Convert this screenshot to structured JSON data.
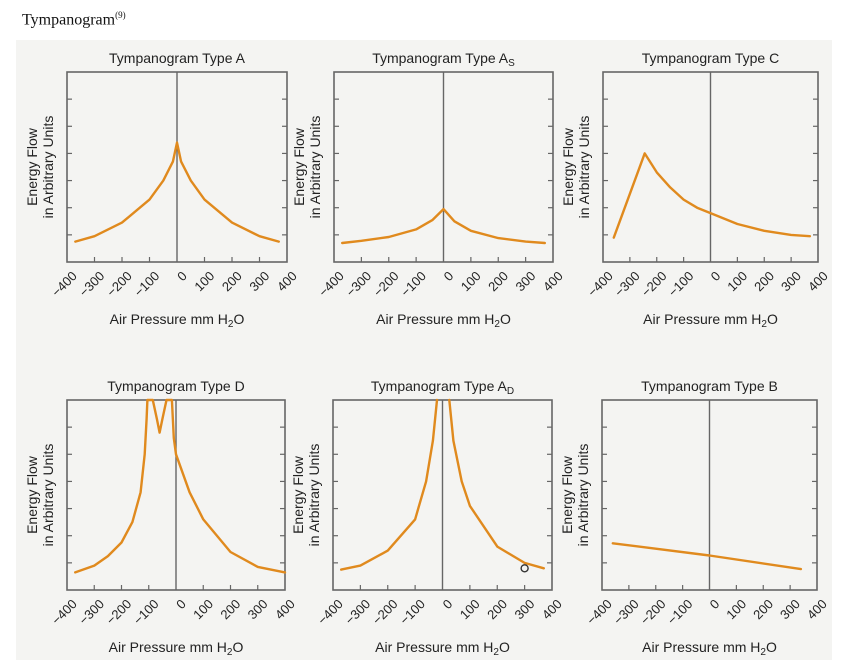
{
  "figure": {
    "title": "Tympanogram",
    "reference": "(9)"
  },
  "colors": {
    "curve": "#e08a1e",
    "axis": "#666666",
    "text": "#222222"
  },
  "chart_data": [
    {
      "type": "line",
      "title": "Tympanogram Type A",
      "title_sub": "",
      "xlabel": "Air Pressure mm H",
      "xlabel_sub": "2",
      "xlabel_end": "O",
      "ylabel": [
        "Energy Flow",
        "in Arbitrary Units"
      ],
      "xlim": [
        -400,
        400
      ],
      "ylim": [
        0,
        7
      ],
      "xticks": [
        -400,
        -300,
        -200,
        -100,
        0,
        100,
        200,
        300,
        400
      ],
      "yticks": [
        1,
        2,
        3,
        4,
        5,
        6
      ],
      "series": [
        {
          "name": "Type A",
          "points": [
            [
              -370,
              0.75
            ],
            [
              -300,
              0.95
            ],
            [
              -200,
              1.45
            ],
            [
              -100,
              2.3
            ],
            [
              -50,
              3.0
            ],
            [
              -15,
              3.7
            ],
            [
              0,
              4.4
            ],
            [
              15,
              3.7
            ],
            [
              50,
              3.0
            ],
            [
              100,
              2.3
            ],
            [
              200,
              1.45
            ],
            [
              300,
              0.95
            ],
            [
              370,
              0.75
            ]
          ]
        }
      ]
    },
    {
      "type": "line",
      "title": "Tympanogram Type A",
      "title_sub": "S",
      "xlabel": "Air Pressure mm H",
      "xlabel_sub": "2",
      "xlabel_end": "O",
      "ylabel": [
        "Energy Flow",
        "in Arbitrary Units"
      ],
      "xlim": [
        -400,
        400
      ],
      "ylim": [
        0,
        7
      ],
      "xticks": [
        -400,
        -300,
        -200,
        -100,
        0,
        100,
        200,
        300,
        400
      ],
      "yticks": [
        1,
        2,
        3,
        4,
        5,
        6
      ],
      "series": [
        {
          "name": "Type As",
          "points": [
            [
              -370,
              0.7
            ],
            [
              -300,
              0.78
            ],
            [
              -200,
              0.92
            ],
            [
              -100,
              1.2
            ],
            [
              -40,
              1.55
            ],
            [
              0,
              1.95
            ],
            [
              40,
              1.5
            ],
            [
              100,
              1.15
            ],
            [
              200,
              0.88
            ],
            [
              300,
              0.75
            ],
            [
              370,
              0.7
            ]
          ]
        }
      ]
    },
    {
      "type": "line",
      "title": "Tympanogram Type C",
      "title_sub": "",
      "xlabel": "Air Pressure mm H",
      "xlabel_sub": "2",
      "xlabel_end": "O",
      "ylabel": [
        "Energy Flow",
        "in Arbitrary Units"
      ],
      "xlim": [
        -400,
        400
      ],
      "ylim": [
        0,
        7
      ],
      "xticks": [
        -400,
        -300,
        -200,
        -100,
        0,
        100,
        200,
        300,
        400
      ],
      "yticks": [
        1,
        2,
        3,
        4,
        5,
        6
      ],
      "series": [
        {
          "name": "Type C",
          "points": [
            [
              -360,
              0.9
            ],
            [
              -245,
              4.0
            ],
            [
              -200,
              3.3
            ],
            [
              -150,
              2.75
            ],
            [
              -100,
              2.3
            ],
            [
              -50,
              2.0
            ],
            [
              0,
              1.8
            ],
            [
              100,
              1.4
            ],
            [
              200,
              1.15
            ],
            [
              300,
              1.0
            ],
            [
              370,
              0.95
            ]
          ]
        }
      ]
    },
    {
      "type": "line",
      "title": "Tympanogram Type D",
      "title_sub": "",
      "xlabel": "Air Pressure mm H",
      "xlabel_sub": "2",
      "xlabel_end": "O",
      "ylabel": [
        "Energy Flow",
        "in Arbitrary Units"
      ],
      "xlim": [
        -400,
        400
      ],
      "ylim": [
        0,
        7
      ],
      "xticks": [
        -400,
        -300,
        -200,
        -100,
        0,
        100,
        200,
        300,
        400
      ],
      "yticks": [
        1,
        2,
        3,
        4,
        5,
        6
      ],
      "series": [
        {
          "name": "Type D",
          "points": [
            [
              -370,
              0.65
            ],
            [
              -300,
              0.9
            ],
            [
              -250,
              1.25
            ],
            [
              -200,
              1.75
            ],
            [
              -160,
              2.5
            ],
            [
              -130,
              3.6
            ],
            [
              -115,
              5.0
            ],
            [
              -108,
              6.3
            ],
            [
              -105,
              7
            ],
            [
              -85,
              7
            ],
            [
              -70,
              6.3
            ],
            [
              -60,
              5.8
            ],
            [
              -50,
              6.3
            ],
            [
              -35,
              7
            ],
            [
              -15,
              7
            ],
            [
              -8,
              5.6
            ],
            [
              0,
              5.0
            ],
            [
              50,
              3.6
            ],
            [
              100,
              2.6
            ],
            [
              200,
              1.4
            ],
            [
              300,
              0.85
            ],
            [
              400,
              0.65
            ]
          ]
        }
      ]
    },
    {
      "type": "line",
      "title": "Tympanogram Type A",
      "title_sub": "D",
      "xlabel": "Air Pressure mm H",
      "xlabel_sub": "2",
      "xlabel_end": "O",
      "ylabel": [
        "Energy Flow",
        "in Arbitrary Units"
      ],
      "xlim": [
        -400,
        400
      ],
      "ylim": [
        0,
        7
      ],
      "xticks": [
        -400,
        -300,
        -200,
        -100,
        0,
        100,
        200,
        300,
        400
      ],
      "yticks": [
        1,
        2,
        3,
        4,
        5,
        6
      ],
      "series": [
        {
          "name": "Type Ad left",
          "points": [
            [
              -370,
              0.75
            ],
            [
              -300,
              0.9
            ],
            [
              -200,
              1.45
            ],
            [
              -100,
              2.6
            ],
            [
              -60,
              4.0
            ],
            [
              -35,
              5.5
            ],
            [
              -20,
              7
            ]
          ]
        },
        {
          "name": "Type Ad right",
          "points": [
            [
              25,
              7
            ],
            [
              40,
              5.5
            ],
            [
              70,
              4.0
            ],
            [
              100,
              3.1
            ],
            [
              200,
              1.6
            ],
            [
              300,
              1.0
            ],
            [
              370,
              0.8
            ]
          ]
        }
      ],
      "marker": {
        "x": 300,
        "y": 0.8
      }
    },
    {
      "type": "line",
      "title": "Tympanogram Type B",
      "title_sub": "",
      "xlabel": "Air Pressure mm H",
      "xlabel_sub": "2",
      "xlabel_end": "O",
      "ylabel": [
        "Energy Flow",
        "in Arbitrary Units"
      ],
      "xlim": [
        -400,
        400
      ],
      "ylim": [
        0,
        7
      ],
      "xticks": [
        -400,
        -300,
        -200,
        -100,
        0,
        100,
        200,
        300,
        400
      ],
      "yticks": [
        1,
        2,
        3,
        4,
        5,
        6
      ],
      "series": [
        {
          "name": "Type B",
          "points": [
            [
              -360,
              1.72
            ],
            [
              0,
              1.27
            ],
            [
              340,
              0.77
            ]
          ]
        }
      ]
    }
  ]
}
